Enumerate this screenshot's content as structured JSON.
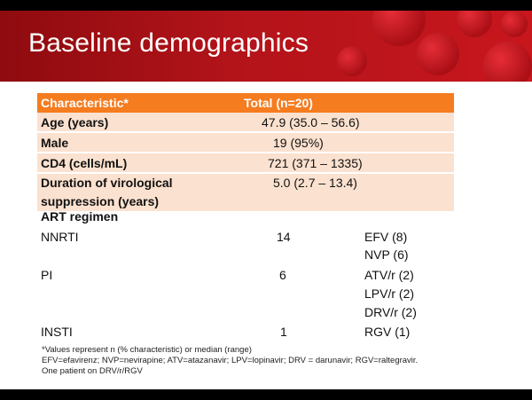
{
  "title": "Baseline demographics",
  "header": {
    "col1": "Characteristic*",
    "col2": "Total (n=20)"
  },
  "rows": [
    {
      "label": "Age (years)",
      "value": "47.9 (35.0 – 56.6)"
    },
    {
      "label": "Male",
      "value": "19 (95%)"
    },
    {
      "label": "CD4 (cells/mL)",
      "value": "721 (371 – 1335)"
    },
    {
      "label_line1": "Duration of virological",
      "label_line2": "suppression (years)",
      "value": "5.0 (2.7 – 13.4)"
    }
  ],
  "art": {
    "heading": "ART regimen",
    "nnrti": {
      "label": "NNRTI",
      "count": "14",
      "drugs": [
        "EFV (8)",
        "NVP (6)"
      ]
    },
    "pi": {
      "label": "PI",
      "count": "6",
      "drugs": [
        "ATV/r (2)",
        "LPV/r (2)",
        "DRV/r (2)"
      ]
    },
    "insti": {
      "label": "INSTI",
      "count": "1",
      "drugs": [
        "RGV (1)"
      ]
    }
  },
  "footnotes": [
    "*Values represent n (% characteristic) or median (range)",
    "EFV=efavirenz; NVP=nevirapine; ATV=atazanavir; LPV=lopinavir; DRV = darunavir; RGV=raltegravir.",
    "One patient on DRV/r/RGV"
  ],
  "colors": {
    "header_orange": "#f57c1f",
    "band_peach": "#fbe1cf",
    "banner_red": "#b3141a"
  }
}
